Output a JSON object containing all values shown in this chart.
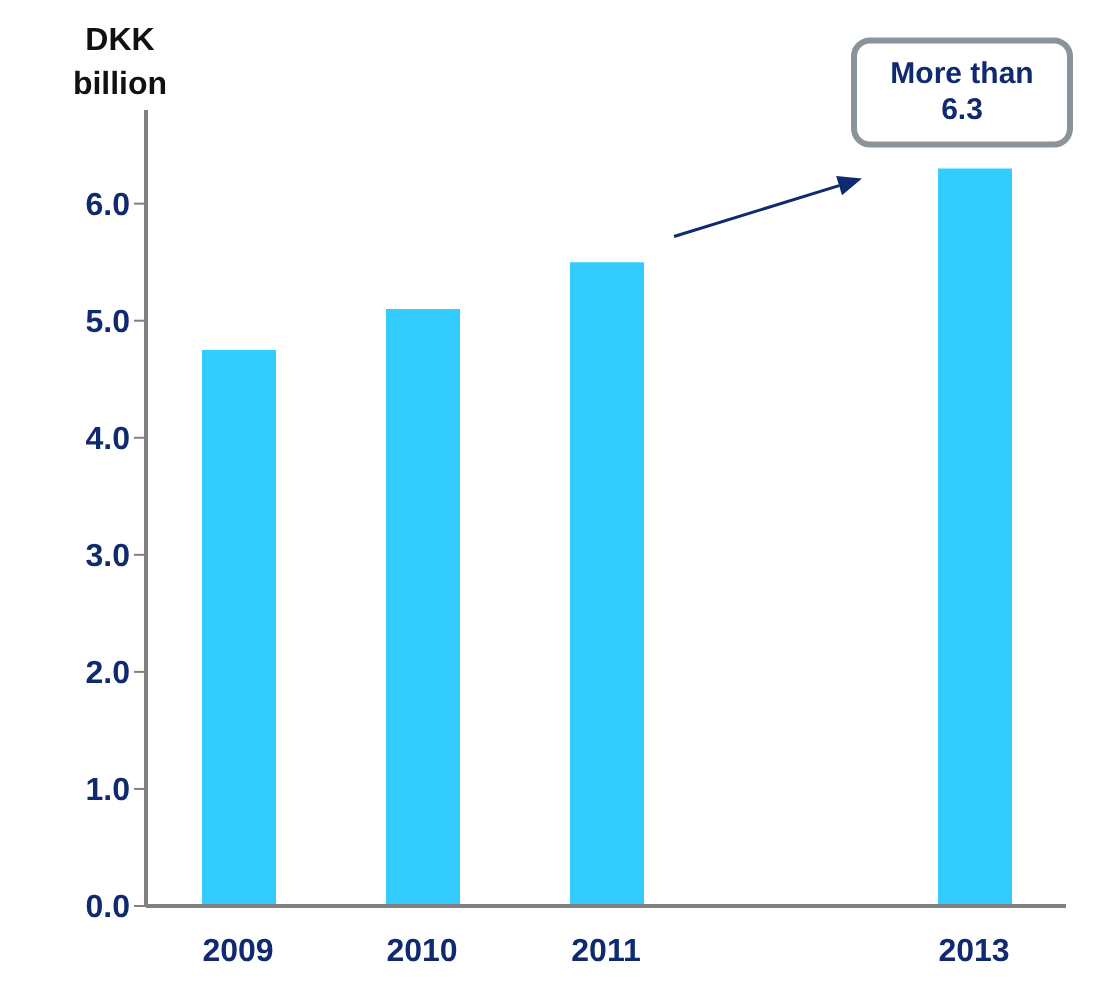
{
  "chart_data": {
    "type": "bar",
    "ylabel": "DKK billion",
    "categories": [
      "2009",
      "2010",
      "2011",
      null,
      "2013"
    ],
    "values": [
      4.75,
      5.1,
      5.5,
      null,
      6.3
    ],
    "color": "#33ccff",
    "ylim": [
      0,
      6.8
    ],
    "yticks": [
      {
        "value": 0,
        "label": "0.0"
      },
      {
        "value": 1,
        "label": "1.0"
      },
      {
        "value": 2,
        "label": "2.0"
      },
      {
        "value": 3,
        "label": "3.0"
      },
      {
        "value": 4,
        "label": "4.0"
      },
      {
        "value": 5,
        "label": "5.0"
      },
      {
        "value": 6,
        "label": "6.0"
      }
    ],
    "grid": false,
    "legend": false,
    "annotations": [
      {
        "text": "More than 6.3",
        "x": "2013",
        "y": 6.3
      }
    ]
  }
}
